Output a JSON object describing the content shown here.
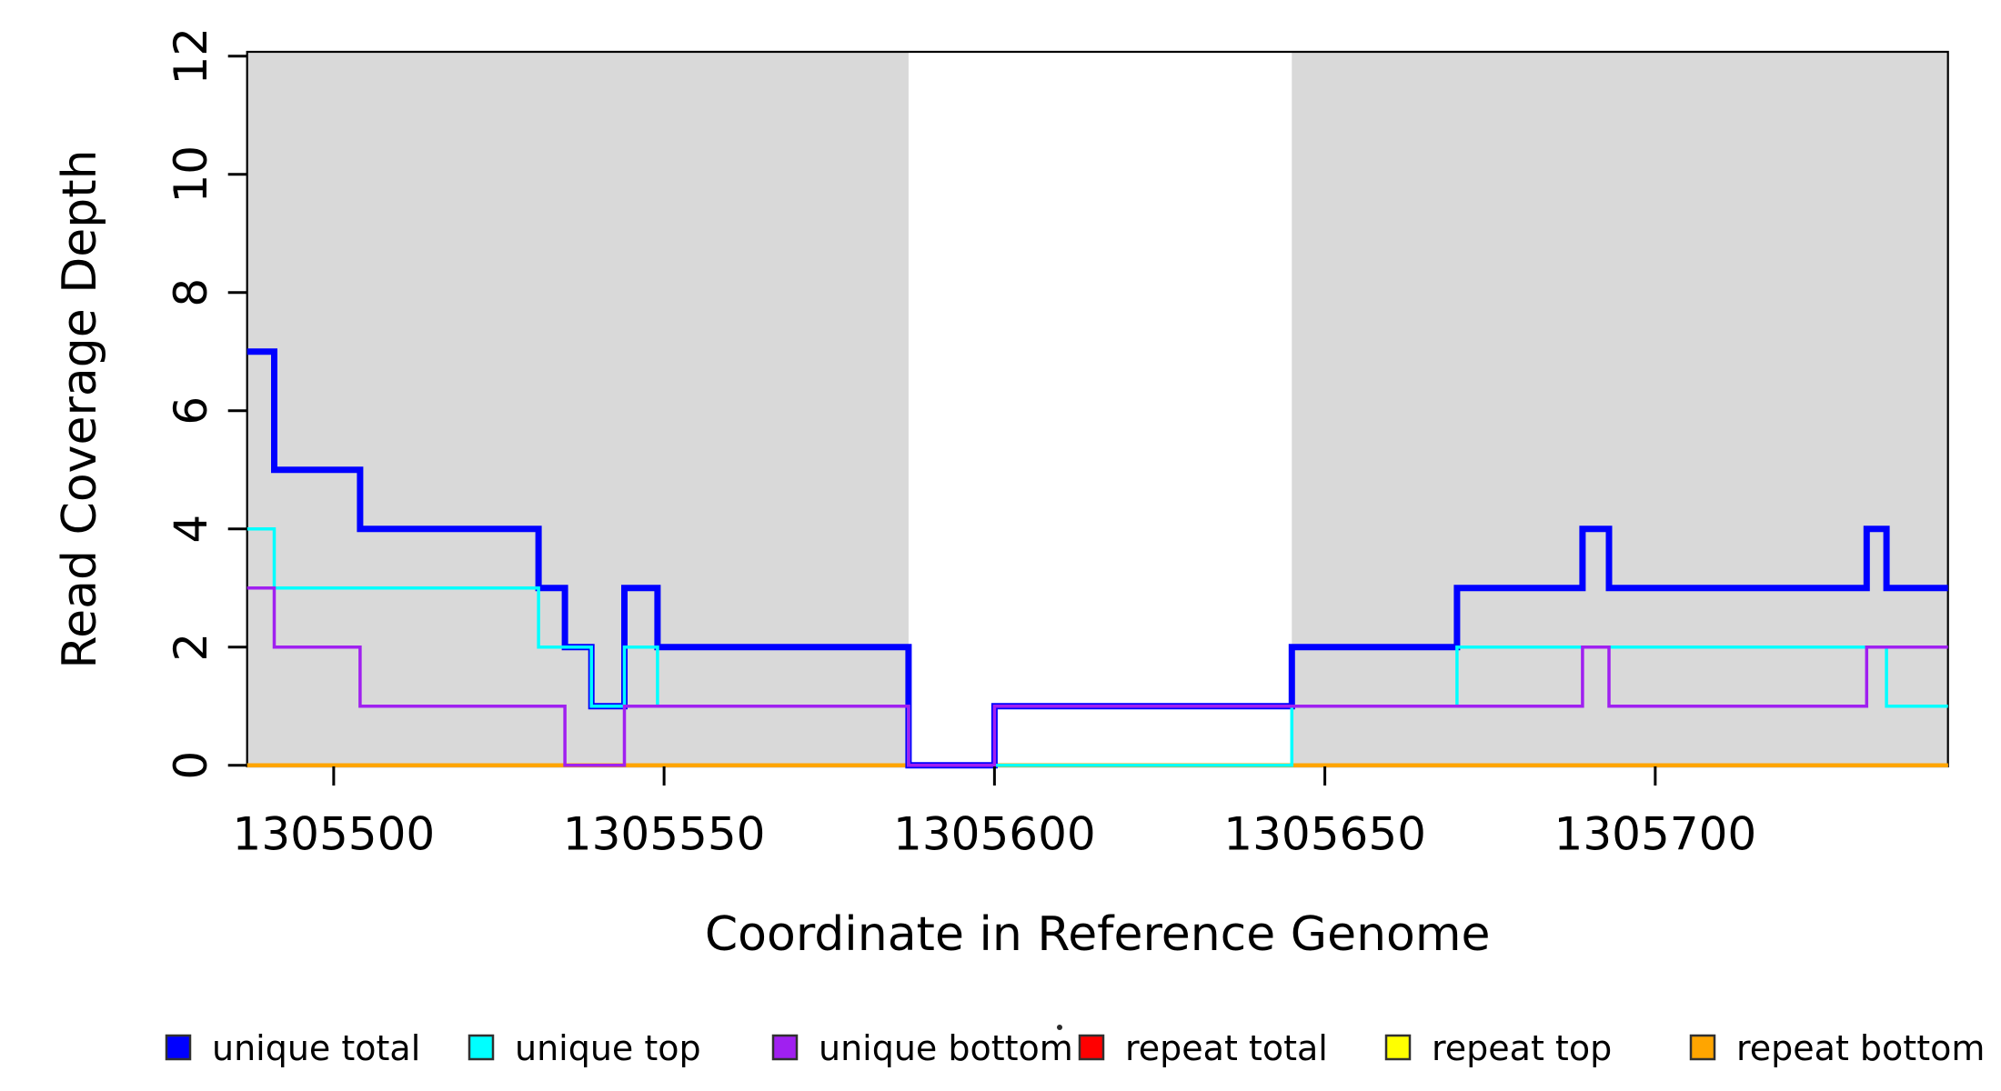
{
  "chart_data": {
    "type": "line",
    "subtype": "step-post-coverage",
    "xlabel": "Coordinate in Reference Genome",
    "ylabel": "Read Coverage Depth",
    "x_range": [
      1305486.9,
      1305744.3
    ],
    "y_range": [
      0,
      12
    ],
    "x_ticks": [
      1305500,
      1305550,
      1305600,
      1305650,
      1305700
    ],
    "y_ticks": [
      0,
      2,
      4,
      6,
      8,
      10,
      12
    ],
    "grid": false,
    "background_color": "#ffffff",
    "shaded_regions": [
      {
        "name": "shaded-region-left",
        "x_start": 1305486.9,
        "x_end": 1305587,
        "color": "#D9D9D9"
      },
      {
        "name": "shaded-region-right",
        "x_start": 1305645,
        "x_end": 1305744.3,
        "color": "#D9D9D9"
      }
    ],
    "series": [
      {
        "name": "repeat total",
        "color": "#FF0000",
        "line_width": 4,
        "steps": [
          [
            1305486.9,
            0
          ]
        ]
      },
      {
        "name": "repeat top",
        "color": "#FFFF00",
        "line_width": 4,
        "steps": [
          [
            1305486.9,
            0
          ]
        ]
      },
      {
        "name": "repeat bottom",
        "color": "#FFA500",
        "line_width": 4.5,
        "steps": [
          [
            1305486.9,
            0
          ]
        ]
      },
      {
        "name": "unique total",
        "color": "#0000FF",
        "line_width": 7,
        "steps": [
          [
            1305486.9,
            7
          ],
          [
            1305491,
            5
          ],
          [
            1305504,
            4
          ],
          [
            1305531,
            3
          ],
          [
            1305535,
            2
          ],
          [
            1305539,
            1
          ],
          [
            1305544,
            3
          ],
          [
            1305549,
            2
          ],
          [
            1305587,
            0
          ],
          [
            1305600,
            1
          ],
          [
            1305645,
            2
          ],
          [
            1305670,
            3
          ],
          [
            1305689,
            4
          ],
          [
            1305693,
            3
          ],
          [
            1305732,
            4
          ],
          [
            1305735,
            3
          ]
        ]
      },
      {
        "name": "unique top",
        "color": "#00FFFF",
        "line_width": 3.5,
        "steps": [
          [
            1305486.9,
            4
          ],
          [
            1305491,
            3
          ],
          [
            1305531,
            2
          ],
          [
            1305539,
            1
          ],
          [
            1305544,
            2
          ],
          [
            1305549,
            1
          ],
          [
            1305587,
            0
          ],
          [
            1305645,
            1
          ],
          [
            1305670,
            2
          ],
          [
            1305735,
            1
          ]
        ]
      },
      {
        "name": "unique bottom",
        "color": "#A020F0",
        "line_width": 3.5,
        "steps": [
          [
            1305486.9,
            3
          ],
          [
            1305491,
            2
          ],
          [
            1305504,
            1
          ],
          [
            1305535,
            0
          ],
          [
            1305544,
            1
          ],
          [
            1305587,
            0
          ],
          [
            1305600,
            1
          ],
          [
            1305689,
            2
          ],
          [
            1305693,
            1
          ],
          [
            1305732,
            2
          ]
        ]
      }
    ],
    "legend": {
      "position": "bottom",
      "items": [
        {
          "label": "unique total",
          "color": "#0000FF"
        },
        {
          "label": "unique top",
          "color": "#00FFFF"
        },
        {
          "label": "unique bottom",
          "color": "#A020F0"
        },
        {
          "label": "repeat total",
          "color": "#FF0000"
        },
        {
          "label": "repeat top",
          "color": "#FFFF00"
        },
        {
          "label": "repeat bottom",
          "color": "#FFA500"
        }
      ]
    },
    "artifact_dot": {
      "x": 1165,
      "y": 1130,
      "color": "#2b2b2b"
    }
  }
}
